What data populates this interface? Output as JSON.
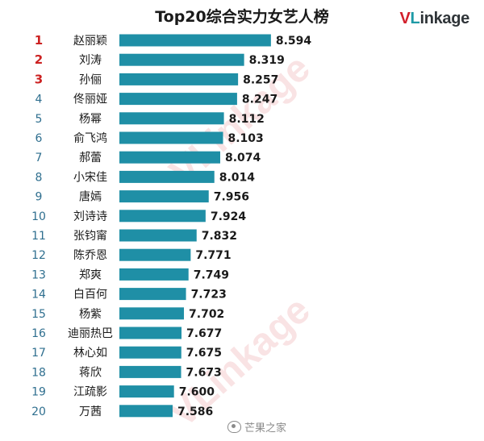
{
  "chart_data": {
    "type": "bar",
    "orientation": "horizontal",
    "title": "Top20综合实力女艺人榜",
    "xlabel": "",
    "ylabel": "",
    "categories": [
      "赵丽颖",
      "刘涛",
      "孙俪",
      "佟丽娅",
      "杨幂",
      "俞飞鸿",
      "郝蕾",
      "小宋佳",
      "唐嫣",
      "刘诗诗",
      "张钧甯",
      "陈乔恩",
      "郑爽",
      "白百何",
      "杨紫",
      "迪丽热巴",
      "林心如",
      "蒋欣",
      "江疏影",
      "万茜"
    ],
    "ranks": [
      "1",
      "2",
      "3",
      "4",
      "5",
      "6",
      "7",
      "8",
      "9",
      "10",
      "11",
      "12",
      "13",
      "14",
      "15",
      "16",
      "17",
      "18",
      "19",
      "20"
    ],
    "values": [
      8.594,
      8.319,
      8.257,
      8.247,
      8.112,
      8.103,
      8.074,
      8.014,
      7.956,
      7.924,
      7.832,
      7.771,
      7.749,
      7.723,
      7.702,
      7.677,
      7.675,
      7.673,
      7.6,
      7.586
    ],
    "value_labels": [
      "8.594",
      "8.319",
      "8.257",
      "8.247",
      "8.112",
      "8.103",
      "8.074",
      "8.014",
      "7.956",
      "7.924",
      "7.832",
      "7.771",
      "7.749",
      "7.723",
      "7.702",
      "7.677",
      "7.675",
      "7.673",
      "7.600",
      "7.586"
    ],
    "bar_color": "#1f8fa6",
    "top_rank_color": "#cc2222",
    "rank_color": "#2f6f8f",
    "grid": false,
    "legend": "none"
  },
  "brand": {
    "v": "V",
    "l": "L",
    "rest": "inkage"
  },
  "watermark": "VLinkage",
  "footer": {
    "text": "芒果之家"
  }
}
